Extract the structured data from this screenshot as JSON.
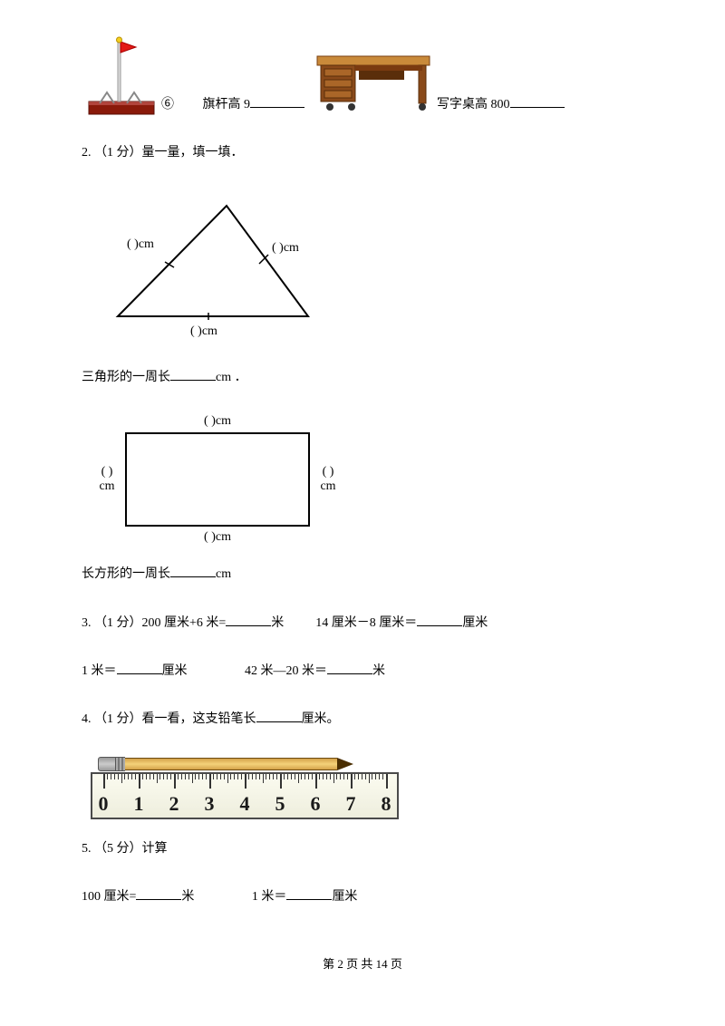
{
  "q6": {
    "circled": "⑥",
    "flagpole_label": "旗杆高 9",
    "desk_label": "写字桌高 800"
  },
  "q2": {
    "header": "2. （1 分）量一量，填一填．",
    "triangle": {
      "side_label": "(   )cm",
      "perimeter_text_prefix": "三角形的一周长",
      "perimeter_text_suffix": "cm ．"
    },
    "rectangle": {
      "top": "(   )cm",
      "bottom": "(   )cm",
      "left_top": "(   )",
      "left_bottom": "cm",
      "right_top": "(   )",
      "right_bottom": "cm",
      "perimeter_text_prefix": "长方形的一周长",
      "perimeter_text_suffix": "cm"
    }
  },
  "q3": {
    "header_prefix": "3. （1 分）",
    "a_prefix": "200 厘米+6 米=",
    "a_suffix": "米",
    "b_prefix": "14 厘米－8 厘米＝",
    "b_suffix": "厘米",
    "c_prefix": "1 米＝",
    "c_suffix": "厘米",
    "d_prefix": "42 米―20 米＝",
    "d_suffix": "米"
  },
  "q4": {
    "header_prefix": "4. （1 分）看一看，这支铅笔长",
    "header_suffix": "厘米。",
    "ruler_numbers": [
      "0",
      "1",
      "2",
      "3",
      "4",
      "5",
      "6",
      "7",
      "8"
    ]
  },
  "q5": {
    "header": "5. （5 分）计算",
    "a_prefix": "100 厘米=",
    "a_suffix": "米",
    "b_prefix": "1 米＝",
    "b_suffix": "厘米"
  },
  "footer": {
    "page_text": "第 2 页 共 14 页"
  },
  "illustrations": {
    "flagpole_colors": {
      "base": "#8a1a0a",
      "pole": "#c0c0c0",
      "flag": "#e31a17"
    },
    "desk_colors": {
      "top": "#c98a3a",
      "body": "#8a4a1a",
      "shadow": "#5a2e0a"
    }
  }
}
